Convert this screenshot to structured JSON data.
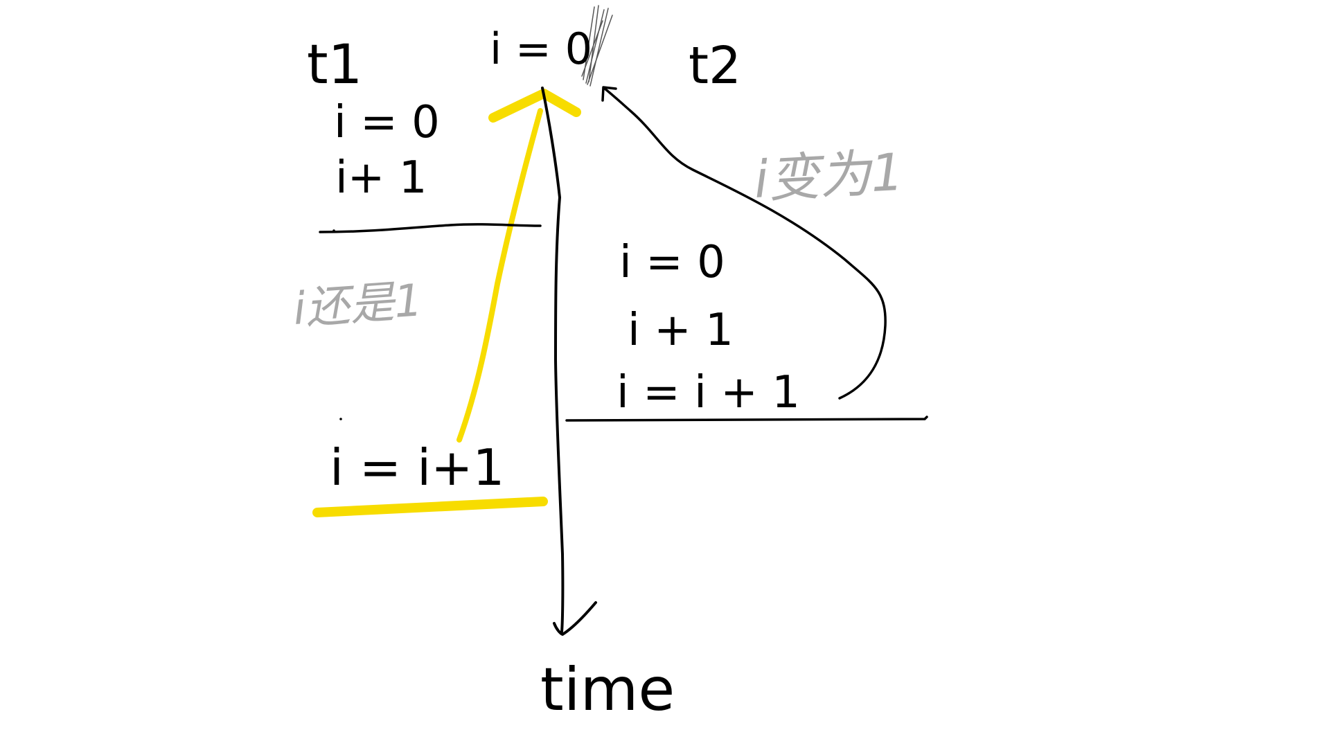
{
  "colors": {
    "ink": "#000000",
    "highlight": "#f7dc00",
    "annotation": "#a8a8a8",
    "background": "#ffffff"
  },
  "shared": {
    "label": "i = 0"
  },
  "threads": {
    "t1": {
      "label": "t1",
      "lines": [
        "i = 0",
        "i+ 1"
      ],
      "assignment": "i = i+1"
    },
    "t2": {
      "label": "t2",
      "lines": [
        "i = 0",
        "i + 1",
        "i = i + 1"
      ]
    }
  },
  "annotations": {
    "t1_note": "i还是1",
    "t2_note": "i变为1"
  },
  "axis": {
    "label": "time"
  }
}
